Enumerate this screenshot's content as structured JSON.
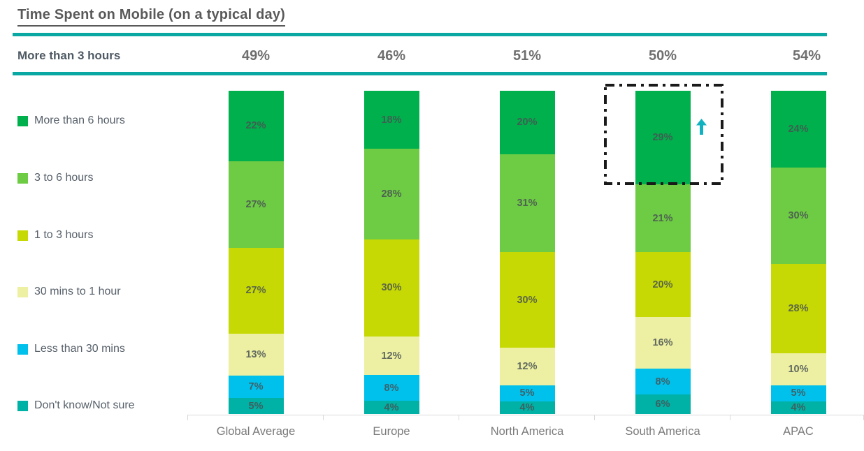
{
  "page": {
    "title": "Time Spent on Mobile (on a typical day)"
  },
  "summary_row": {
    "label": "More than 3 hours",
    "values": [
      "49%",
      "46%",
      "51%",
      "50%",
      "54%"
    ]
  },
  "chart_data": {
    "type": "bar",
    "variant": "stacked-percent-column",
    "title": "Time Spent on Mobile (on a typical day)",
    "categories": [
      "Global Average",
      "Europe",
      "North America",
      "South America",
      "APAC"
    ],
    "series": [
      {
        "name": "More than 6 hours",
        "color": "#00b04c",
        "values": [
          22,
          18,
          20,
          29,
          24
        ]
      },
      {
        "name": "3 to 6 hours",
        "color": "#6ecb44",
        "values": [
          27,
          28,
          31,
          21,
          30
        ]
      },
      {
        "name": "1 to 3 hours",
        "color": "#c6d904",
        "values": [
          27,
          30,
          30,
          20,
          28
        ]
      },
      {
        "name": "30 mins to 1 hour",
        "color": "#edf0a2",
        "values": [
          13,
          12,
          12,
          16,
          10
        ]
      },
      {
        "name": "Less than 30 mins",
        "color": "#00c0ec",
        "values": [
          7,
          8,
          5,
          8,
          5
        ]
      },
      {
        "name": "Don't know/Not sure",
        "color": "#00b1a5",
        "values": [
          5,
          4,
          4,
          6,
          4
        ]
      }
    ],
    "value_suffix": "%",
    "legend_position": "left",
    "summary_metric": {
      "label": "More than 3 hours",
      "values": [
        49,
        46,
        51,
        50,
        54
      ]
    },
    "highlight": {
      "category": "South America",
      "series": "More than 6 hours",
      "value": 29,
      "style": "dash-dot-box",
      "annotation_icon": "up-arrow"
    }
  },
  "colors": {
    "rule_teal": "#0aa8a3",
    "title_text": "#595959",
    "summary_label": "#4f5a64",
    "summary_value": "#6f6f6f",
    "legend_text": "#57606a",
    "axis_line": "#d9d9d9",
    "x_label": "#7a7a7a",
    "highlight_box": "#1a1a1a",
    "arrow": "#10b2bf"
  }
}
